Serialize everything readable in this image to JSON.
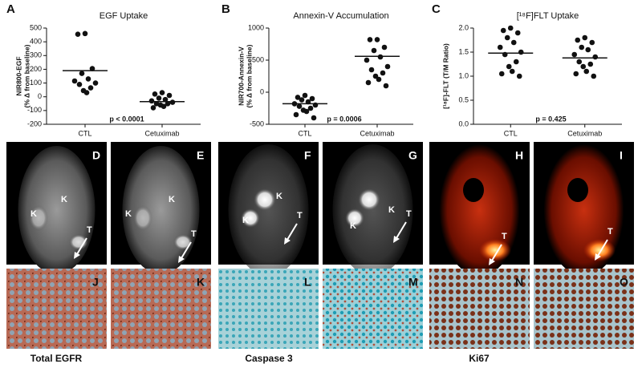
{
  "chart_data": [
    {
      "type": "strip",
      "panel": "A",
      "title": "EGF  Uptake",
      "ylabel": [
        "NIR800-EGF",
        "(% Δ from baseline)"
      ],
      "categories": [
        "CTL",
        "Cetuximab"
      ],
      "values": [
        [
          460,
          455,
          205,
          170,
          130,
          115,
          100,
          90,
          65,
          45,
          30
        ],
        [
          30,
          20,
          10,
          -10,
          -20,
          -30,
          -40,
          -50,
          -50,
          -60,
          -70,
          -80
        ]
      ],
      "means": [
        190,
        -35
      ],
      "annotation": "p < 0.0001",
      "ylim": [
        -200,
        500
      ],
      "yticks": [
        -200,
        -100,
        0,
        100,
        200,
        300,
        400,
        500
      ],
      "color": "#111111"
    },
    {
      "type": "strip",
      "panel": "B",
      "title": "Annexin-V Accumulation",
      "ylabel": [
        "NIR700-Annexin-V",
        "(% Δ from baseline)"
      ],
      "categories": [
        "CTL",
        "Cetuximab"
      ],
      "values": [
        [
          -50,
          -80,
          -100,
          -120,
          -150,
          -180,
          -200,
          -220,
          -250,
          -280,
          -300,
          -350,
          -400
        ],
        [
          820,
          820,
          700,
          650,
          550,
          500,
          400,
          350,
          300,
          250,
          200,
          150,
          100
        ]
      ],
      "means": [
        -180,
        560
      ],
      "annotation": "p = 0.0006",
      "ylim": [
        -500,
        1000
      ],
      "yticks": [
        -500,
        0,
        500,
        1000
      ],
      "color": "#111111"
    },
    {
      "type": "strip",
      "panel": "C",
      "title": "[¹⁸F]FLT Uptake",
      "ylabel": [
        "[¹⁸F]-FLT (T/M Ratio)"
      ],
      "categories": [
        "CTL",
        "Cetuximab"
      ],
      "values": [
        [
          2.0,
          1.95,
          1.9,
          1.8,
          1.7,
          1.6,
          1.5,
          1.45,
          1.3,
          1.2,
          1.1,
          1.05,
          1.0
        ],
        [
          1.8,
          1.75,
          1.7,
          1.6,
          1.55,
          1.45,
          1.4,
          1.3,
          1.25,
          1.2,
          1.1,
          1.05,
          1.0
        ]
      ],
      "means": [
        1.48,
        1.38
      ],
      "annotation": "p = 0.425",
      "ylim": [
        0,
        2.0
      ],
      "yticks": [
        {
          "value": 0,
          "label": "0.0"
        },
        0.5,
        {
          "value": 1,
          "label": "1.0"
        },
        1.5,
        {
          "value": 2,
          "label": "2.0"
        }
      ],
      "color": "#111111"
    }
  ],
  "images": [
    {
      "letter": "D",
      "labels": [
        "K",
        "K",
        "T"
      ]
    },
    {
      "letter": "E",
      "labels": [
        "K",
        "K",
        "T"
      ]
    },
    {
      "letter": "F",
      "labels": [
        "K",
        "K",
        "T"
      ]
    },
    {
      "letter": "G",
      "labels": [
        "K",
        "K",
        "T"
      ]
    },
    {
      "letter": "H",
      "labels": [
        "T"
      ]
    },
    {
      "letter": "I",
      "labels": [
        "T"
      ]
    },
    {
      "letter": "J",
      "labels": []
    },
    {
      "letter": "K",
      "labels": []
    },
    {
      "letter": "L",
      "labels": []
    },
    {
      "letter": "M",
      "labels": []
    },
    {
      "letter": "N",
      "labels": []
    },
    {
      "letter": "O",
      "labels": []
    }
  ],
  "captions": [
    "Total EGFR",
    "Caspase 3",
    "Ki67"
  ]
}
